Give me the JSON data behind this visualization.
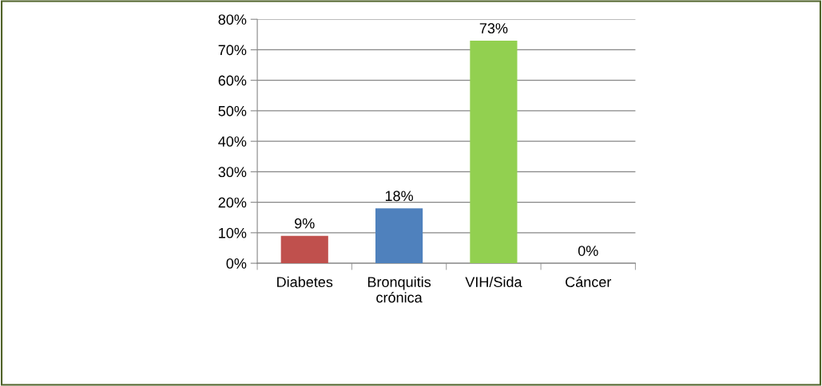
{
  "chart_data": {
    "type": "bar",
    "categories": [
      "Diabetes",
      "Bronquitis crónica",
      "VIH/Sida",
      "Cáncer"
    ],
    "values": [
      9,
      18,
      73,
      0
    ],
    "colors": [
      "#c0504d",
      "#4f81bd",
      "#92d050",
      "#f79646"
    ],
    "value_labels": [
      "9%",
      "18%",
      "73%",
      "0%"
    ],
    "ylim": [
      0,
      80
    ],
    "yticks": [
      {
        "value": 0,
        "label": "0%"
      },
      {
        "value": 10,
        "label": "10%"
      },
      {
        "value": 20,
        "label": "20%"
      },
      {
        "value": 30,
        "label": "30%"
      },
      {
        "value": 40,
        "label": "40%"
      },
      {
        "value": 50,
        "label": "50%"
      },
      {
        "value": 60,
        "label": "60%"
      },
      {
        "value": 70,
        "label": "70%"
      },
      {
        "value": 80,
        "label": "80%"
      }
    ],
    "grid": "y",
    "legend": false
  }
}
